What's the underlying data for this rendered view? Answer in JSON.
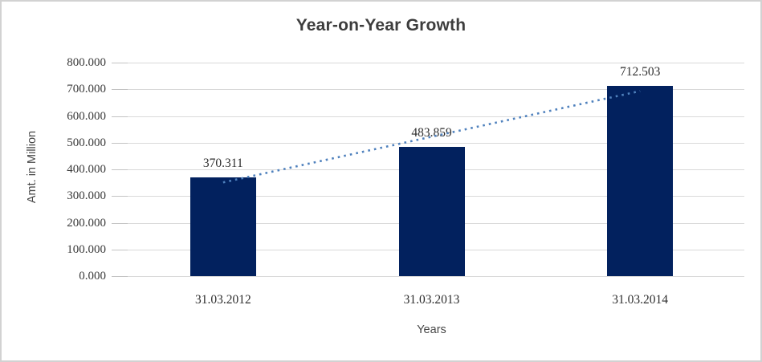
{
  "chart_data": {
    "type": "bar",
    "title": "Year-on-Year Growth",
    "xlabel": "Years",
    "ylabel": "Amt. in Million",
    "categories": [
      "31.03.2012",
      "31.03.2013",
      "31.03.2014"
    ],
    "values": [
      370.311,
      483.859,
      712.503
    ],
    "data_labels": [
      "370.311",
      "483.859",
      "712.503"
    ],
    "yticks": [
      "0.000",
      "100.000",
      "200.000",
      "300.000",
      "400.000",
      "500.000",
      "600.000",
      "700.000",
      "800.000"
    ],
    "ylim": [
      0,
      800
    ],
    "ytick_step": 100,
    "grid": true,
    "legend": "none",
    "colors": {
      "bar": "#02215e",
      "trendline": "#4f81bd",
      "gridline": "#d9d9d9",
      "title_text": "#3d3d3d"
    },
    "trendline": {
      "type": "linear",
      "style": "dotted"
    }
  }
}
